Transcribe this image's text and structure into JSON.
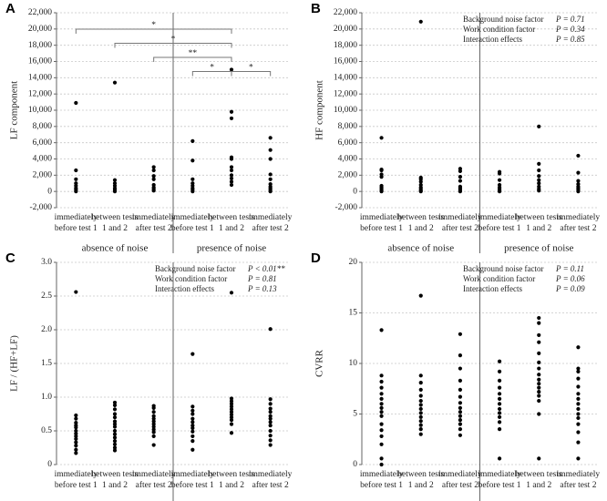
{
  "chart_data": [
    {
      "type": "strip",
      "letter": "A",
      "ylabel": "LF component",
      "categories": [
        [
          "immediately",
          "before test 1"
        ],
        [
          "between tests",
          "1 and 2"
        ],
        [
          "immediately",
          "after test 2"
        ],
        [
          "immediately",
          "before test 1"
        ],
        [
          "between tests",
          "1 and 2"
        ],
        [
          "immediately",
          "after test 2"
        ]
      ],
      "groups": [
        "absence of noise",
        "presence of noise"
      ],
      "values": [
        [
          10900,
          2600,
          1500,
          1000,
          700,
          400,
          200,
          0
        ],
        [
          13400,
          1400,
          1000,
          700,
          400,
          200,
          0
        ],
        [
          3000,
          2600,
          1900,
          1500,
          800,
          500,
          300,
          100
        ],
        [
          6200,
          3800,
          1500,
          1000,
          700,
          400,
          200,
          0
        ],
        [
          15000,
          9800,
          9000,
          4200,
          4000,
          3000,
          2600,
          2000,
          1600,
          1200,
          800
        ],
        [
          6600,
          5100,
          4000,
          2100,
          1500,
          900,
          600,
          400,
          200,
          0
        ]
      ],
      "ylim": [
        -2000,
        22000
      ],
      "yticks": [
        {
          "value": -2000,
          "label": "-2,000"
        },
        0,
        {
          "value": 2000,
          "label": "2,000"
        },
        {
          "value": 4000,
          "label": "4,000"
        },
        {
          "value": 6000,
          "label": "6,000"
        },
        {
          "value": 8000,
          "label": "8,000"
        },
        {
          "value": 10000,
          "label": "10,000"
        },
        {
          "value": 12000,
          "label": "12,000"
        },
        {
          "value": 14000,
          "label": "14,000"
        },
        {
          "value": 16000,
          "label": "16,000"
        },
        {
          "value": 18000,
          "label": "18,000"
        },
        {
          "value": 20000,
          "label": "20,000"
        },
        {
          "value": 22000,
          "label": "22,000"
        }
      ],
      "grid": true,
      "color": "#000000",
      "brackets": [
        {
          "from": 0,
          "to": 4,
          "label": "*"
        },
        {
          "from": 1,
          "to": 4,
          "label": "*"
        },
        {
          "from": 2,
          "to": 4,
          "label": "**"
        },
        {
          "from": 3,
          "to": 4,
          "label": "*"
        },
        {
          "from": 4,
          "to": 5,
          "label": "*"
        }
      ]
    },
    {
      "type": "strip",
      "letter": "B",
      "ylabel": "HF component",
      "categories": [
        [
          "immediately",
          "before test 1"
        ],
        [
          "between tests",
          "1 and 2"
        ],
        [
          "immediately",
          "after test 2"
        ],
        [
          "immediately",
          "before test 1"
        ],
        [
          "between tests",
          "1 and 2"
        ],
        [
          "immediately",
          "after test 2"
        ]
      ],
      "groups": [
        "absence of noise",
        "presence of noise"
      ],
      "values": [
        [
          6600,
          2700,
          2600,
          2100,
          1800,
          700,
          500,
          300,
          100,
          0
        ],
        [
          20900,
          1700,
          1500,
          1200,
          800,
          500,
          300,
          100,
          0
        ],
        [
          2800,
          2500,
          1800,
          1300,
          600,
          400,
          200,
          0
        ],
        [
          2400,
          2200,
          1400,
          800,
          500,
          300,
          100,
          0
        ],
        [
          8000,
          3400,
          2600,
          1900,
          1400,
          1000,
          600,
          300,
          100
        ],
        [
          4400,
          2300,
          1300,
          900,
          600,
          400,
          200,
          0
        ]
      ],
      "ylim": [
        -2000,
        22000
      ],
      "yticks": [
        {
          "value": -2000,
          "label": "-2,000"
        },
        0,
        {
          "value": 2000,
          "label": "2,000"
        },
        {
          "value": 4000,
          "label": "4,000"
        },
        {
          "value": 6000,
          "label": "6,000"
        },
        {
          "value": 8000,
          "label": "8,000"
        },
        {
          "value": 10000,
          "label": "10,000"
        },
        {
          "value": 12000,
          "label": "12,000"
        },
        {
          "value": 14000,
          "label": "14,000"
        },
        {
          "value": 16000,
          "label": "16,000"
        },
        {
          "value": 18000,
          "label": "18,000"
        },
        {
          "value": 20000,
          "label": "20,000"
        },
        {
          "value": 22000,
          "label": "22,000"
        }
      ],
      "grid": true,
      "color": "#000000",
      "annotations": [
        {
          "text": "Background noise factor",
          "p": "P = 0.71"
        },
        {
          "text": "Work condition factor",
          "p": "P = 0.34"
        },
        {
          "text": "Interaction effects",
          "p": "P = 0.85"
        }
      ]
    },
    {
      "type": "strip",
      "letter": "C",
      "ylabel": "LF / (HF+LF)",
      "categories": [
        [
          "immediately",
          "before test 1"
        ],
        [
          "between tests",
          "1 and 2"
        ],
        [
          "immediately",
          "after test 2"
        ],
        [
          "immediately",
          "before test 1"
        ],
        [
          "between tests",
          "1 and 2"
        ],
        [
          "immediately",
          "after test 2"
        ]
      ],
      "groups": [
        "absence of noise",
        "presence of noise"
      ],
      "values": [
        [
          2.56,
          0.73,
          0.68,
          0.62,
          0.58,
          0.55,
          0.5,
          0.46,
          0.42,
          0.38,
          0.33,
          0.28,
          0.22,
          0.17
        ],
        [
          0.92,
          0.88,
          0.82,
          0.75,
          0.7,
          0.64,
          0.6,
          0.56,
          0.5,
          0.45,
          0.4,
          0.35,
          0.3,
          0.25,
          0.21
        ],
        [
          0.87,
          0.84,
          0.78,
          0.72,
          0.68,
          0.64,
          0.6,
          0.56,
          0.52,
          0.48,
          0.42,
          0.29
        ],
        [
          1.64,
          0.86,
          0.8,
          0.75,
          0.68,
          0.63,
          0.58,
          0.54,
          0.49,
          0.42,
          0.35,
          0.22
        ],
        [
          2.55,
          0.98,
          0.94,
          0.9,
          0.86,
          0.82,
          0.78,
          0.74,
          0.7,
          0.66,
          0.6,
          0.47
        ],
        [
          2.01,
          0.97,
          0.9,
          0.83,
          0.78,
          0.72,
          0.68,
          0.63,
          0.58,
          0.5,
          0.43,
          0.36,
          0.29
        ]
      ],
      "ylim": [
        0,
        3
      ],
      "yticks": [
        0,
        0.5,
        {
          "value": 1,
          "label": "1.0"
        },
        1.5,
        {
          "value": 2,
          "label": "2.0"
        },
        2.5,
        {
          "value": 3,
          "label": "3.0"
        }
      ],
      "grid": true,
      "color": "#000000",
      "annotations": [
        {
          "text": "Background noise factor",
          "p": "P < 0.01**"
        },
        {
          "text": "Work condition factor",
          "p": "P = 0.81"
        },
        {
          "text": "Interaction effects",
          "p": "P = 0.13"
        }
      ]
    },
    {
      "type": "strip",
      "letter": "D",
      "ylabel": "CVRR",
      "categories": [
        [
          "immediately",
          "before test 1"
        ],
        [
          "between tests",
          "1 and 2"
        ],
        [
          "immediately",
          "after test 2"
        ],
        [
          "immediately",
          "before test 1"
        ],
        [
          "between tests",
          "1 and 2"
        ],
        [
          "immediately",
          "after test 2"
        ]
      ],
      "groups": [
        "absence of noise",
        "presence of noise"
      ],
      "values": [
        [
          13.3,
          8.8,
          8.2,
          7.6,
          7.0,
          6.5,
          6.0,
          5.6,
          5.2,
          4.8,
          4.0,
          3.4,
          2.8,
          2.0,
          0.6,
          0
        ],
        [
          16.7,
          8.8,
          8.1,
          7.4,
          6.8,
          6.3,
          5.9,
          5.5,
          5.1,
          4.7,
          4.3,
          3.9,
          3.5,
          3.0
        ],
        [
          12.9,
          10.8,
          9.5,
          8.3,
          7.4,
          6.7,
          6.1,
          5.6,
          5.2,
          4.8,
          4.4,
          4.0,
          3.5,
          2.9
        ],
        [
          10.2,
          9.2,
          8.3,
          7.6,
          7.0,
          6.5,
          6.0,
          5.5,
          5.1,
          4.7,
          4.2,
          3.5,
          0.6
        ],
        [
          14.5,
          14.0,
          12.8,
          12.1,
          11.0,
          10.1,
          9.5,
          8.9,
          8.4,
          8.0,
          7.6,
          7.2,
          6.8,
          6.3,
          5.0,
          0.6
        ],
        [
          11.6,
          9.5,
          9.2,
          8.5,
          7.7,
          7.0,
          6.5,
          6.0,
          5.5,
          5.0,
          4.6,
          4.0,
          3.2,
          2.2,
          0.6
        ]
      ],
      "ylim": [
        0,
        20
      ],
      "yticks": [
        0,
        5,
        10,
        15,
        20
      ],
      "grid": true,
      "color": "#000000",
      "annotations": [
        {
          "text": "Background noise factor",
          "p": "P = 0.11"
        },
        {
          "text": "Work condition factor",
          "p": "P = 0.06"
        },
        {
          "text": "Interaction effects",
          "p": "P = 0.09"
        }
      ]
    }
  ]
}
